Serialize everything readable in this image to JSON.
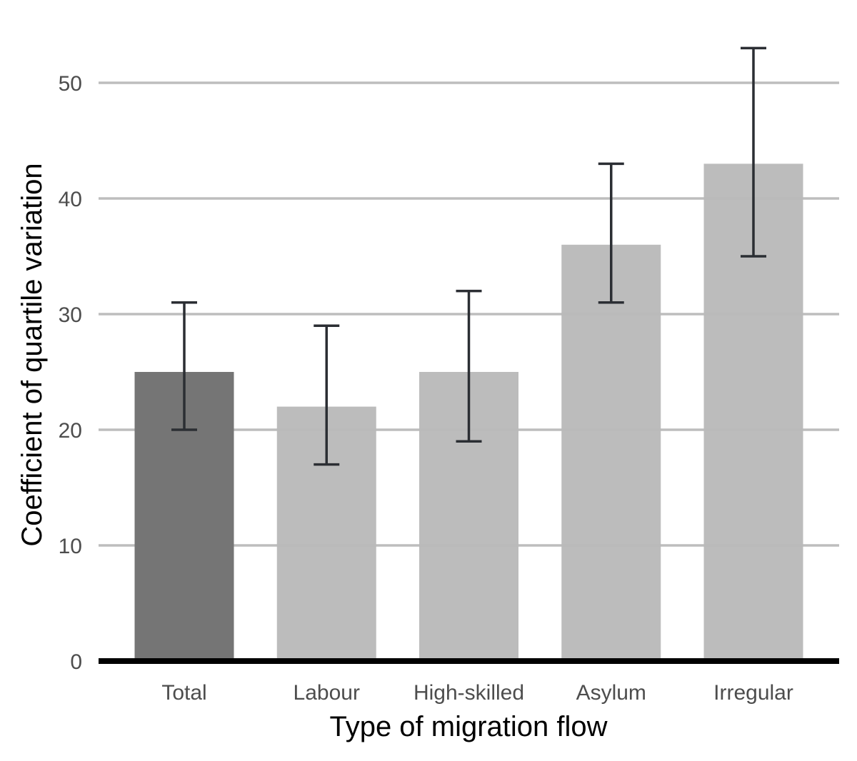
{
  "chart_data": {
    "type": "bar",
    "title": "",
    "xlabel": "Type of migration flow",
    "ylabel": "Coefficient of quartile variation",
    "categories": [
      "Total",
      "Labour",
      "High-skilled",
      "Asylum",
      "Irregular"
    ],
    "values": [
      25,
      22,
      25,
      36,
      43
    ],
    "error_low": [
      20,
      17,
      19,
      31,
      35
    ],
    "error_high": [
      31,
      29,
      32,
      43,
      53
    ],
    "ylim": [
      0,
      55
    ],
    "yticks": [
      "0",
      "10",
      "20",
      "30",
      "40",
      "50"
    ],
    "grid": true,
    "highlight_category": "Total",
    "colors": {
      "highlight": "#757575",
      "bar": "#bababa",
      "grid": "#bdbdbd",
      "baseline": "#000000",
      "errorbar": "#2b2e33",
      "tick_text": "#4d4d4d"
    }
  }
}
